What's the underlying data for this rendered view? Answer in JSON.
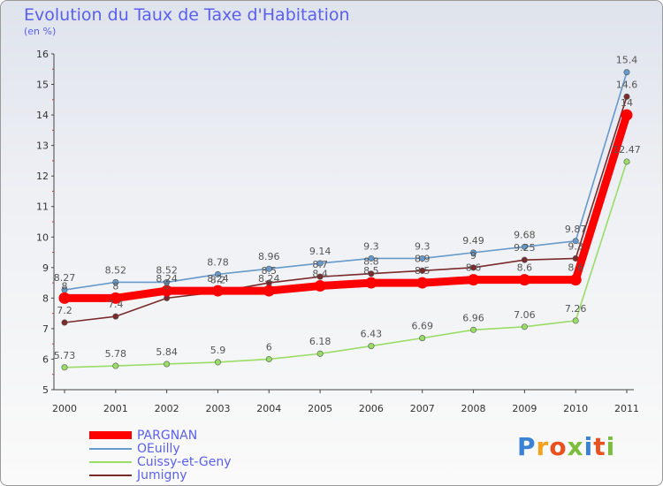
{
  "title": "Evolution du Taux de Taxe d'Habitation",
  "subtitle": "(en %)",
  "logo_text": "Proxiti",
  "chart_data": {
    "type": "line",
    "title": "Evolution du Taux de Taxe d'Habitation",
    "ylabel": "(en %)",
    "x": [
      "2000",
      "2001",
      "2002",
      "2003",
      "2004",
      "2005",
      "2006",
      "2007",
      "2008",
      "2009",
      "2010",
      "2011"
    ],
    "ylim": [
      5,
      16
    ],
    "yticks": [
      5,
      6,
      7,
      8,
      9,
      10,
      11,
      12,
      13,
      14,
      15,
      16
    ],
    "grid": false,
    "legend_position": "bottom-left",
    "series": [
      {
        "name": "PARGNAN",
        "color": "#ff0000",
        "values": [
          8,
          8,
          8.24,
          8.24,
          8.24,
          8.4,
          8.5,
          8.5,
          8.6,
          8.6,
          8.6,
          14
        ],
        "labels": [
          "8",
          "8",
          "8.24",
          "8.24",
          "8.24",
          "8.4",
          "8.5",
          "8.5",
          "8.6",
          "8.6",
          "8.6",
          "14"
        ]
      },
      {
        "name": "OEuilly",
        "color": "#6699cc",
        "values": [
          8.27,
          8.52,
          8.52,
          8.78,
          8.96,
          9.14,
          9.3,
          9.3,
          9.49,
          9.68,
          9.87,
          15.4
        ],
        "labels": [
          "8.27",
          "8.52",
          "8.52",
          "8.78",
          "8.96",
          "9.14",
          "9.3",
          "9.3",
          "9.49",
          "9.68",
          "9.87",
          "15.4"
        ]
      },
      {
        "name": "Cuissy-et-Geny",
        "color": "#99dd66",
        "values": [
          5.73,
          5.78,
          5.84,
          5.9,
          6,
          6.18,
          6.43,
          6.69,
          6.96,
          7.06,
          7.26,
          12.47
        ],
        "labels": [
          "5.73",
          "5.78",
          "5.84",
          "5.9",
          "6",
          "6.18",
          "6.43",
          "6.69",
          "6.96",
          "7.06",
          "7.26",
          "12.47"
        ]
      },
      {
        "name": "Jumigny",
        "color": "#7a2a2a",
        "values": [
          7.2,
          7.4,
          8,
          8.2,
          8.5,
          8.7,
          8.8,
          8.9,
          9,
          9.25,
          9.3,
          14.6
        ],
        "labels": [
          "7.2",
          "7.4",
          "8",
          "8.2",
          "8.5",
          "8.7",
          "8.8",
          "8.9",
          "9",
          "9.25",
          "9.3",
          "14.6"
        ]
      }
    ]
  }
}
